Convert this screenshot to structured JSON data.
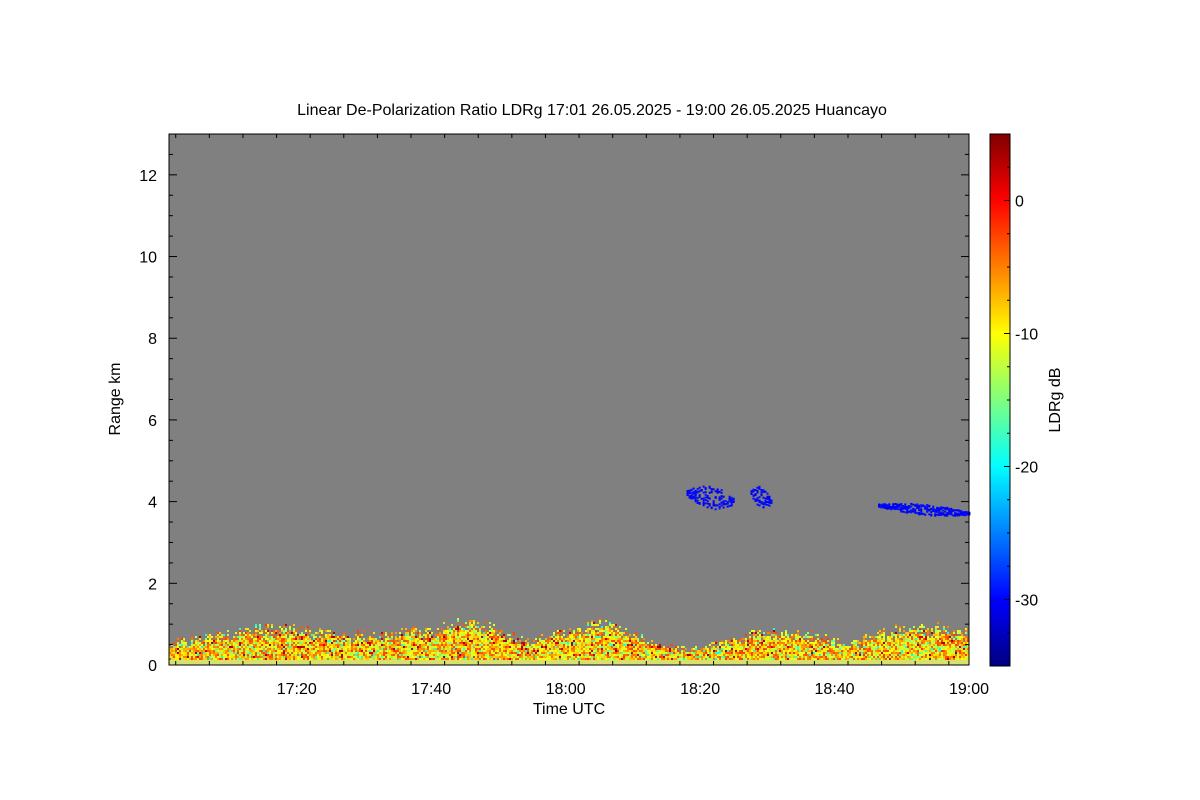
{
  "chart_data": {
    "type": "heatmap",
    "title": "Linear De-Polarization Ratio LDRg   17:01 26.05.2025 - 19:00 26.05.2025 Huancayo",
    "xlabel": "Time UTC",
    "ylabel": "Range km",
    "colorbar_label": "LDRg dB",
    "xlim_minutes": [
      1021,
      1140
    ],
    "ylim": [
      0,
      13
    ],
    "clim": [
      -35,
      5
    ],
    "x_ticks": [
      {
        "minutes": 1040,
        "label": "17:20"
      },
      {
        "minutes": 1060,
        "label": "17:40"
      },
      {
        "minutes": 1080,
        "label": "18:00"
      },
      {
        "minutes": 1100,
        "label": "18:20"
      },
      {
        "minutes": 1120,
        "label": "18:40"
      },
      {
        "minutes": 1140,
        "label": "19:00"
      }
    ],
    "y_ticks": [
      {
        "value": 0,
        "label": "0"
      },
      {
        "value": 2,
        "label": "2"
      },
      {
        "value": 4,
        "label": "4"
      },
      {
        "value": 6,
        "label": "6"
      },
      {
        "value": 8,
        "label": "8"
      },
      {
        "value": 10,
        "label": "10"
      },
      {
        "value": 12,
        "label": "12"
      }
    ],
    "colorbar_ticks": [
      {
        "value": 0,
        "label": "0"
      },
      {
        "value": -10,
        "label": "-10"
      },
      {
        "value": -20,
        "label": "-20"
      },
      {
        "value": -30,
        "label": "-30"
      }
    ],
    "background_color": "#808080",
    "colormap": [
      "#00007f",
      "#0000ff",
      "#007fff",
      "#00ffff",
      "#7fff7f",
      "#ffff00",
      "#ff7f00",
      "#ff0000",
      "#7f0000"
    ],
    "boundary_layer": {
      "description_free": true,
      "time_start_min": 1021,
      "time_end_min": 1140,
      "top_height_km": [
        [
          1021,
          0.55
        ],
        [
          1030,
          0.75
        ],
        [
          1036,
          0.9
        ],
        [
          1040,
          0.85
        ],
        [
          1046,
          0.75
        ],
        [
          1053,
          0.7
        ],
        [
          1058,
          0.85
        ],
        [
          1064,
          1.0
        ],
        [
          1069,
          0.9
        ],
        [
          1074,
          0.6
        ],
        [
          1080,
          0.8
        ],
        [
          1085,
          1.05
        ],
        [
          1089,
          0.85
        ],
        [
          1094,
          0.45
        ],
        [
          1100,
          0.4
        ],
        [
          1106,
          0.7
        ],
        [
          1112,
          0.85
        ],
        [
          1117,
          0.7
        ],
        [
          1122,
          0.5
        ],
        [
          1128,
          0.85
        ],
        [
          1134,
          0.9
        ],
        [
          1140,
          0.8
        ]
      ],
      "value_range_db": [
        -14,
        -2
      ]
    },
    "clouds": [
      {
        "t_start": 1098.0,
        "t_end": 1105.0,
        "h_center": 4.1,
        "h_half": 0.22,
        "value_db": -31
      },
      {
        "t_start": 1107.5,
        "t_end": 1110.5,
        "h_center": 4.1,
        "h_half": 0.2,
        "value_db": -31
      },
      {
        "t_start": 1126.5,
        "t_end": 1140.0,
        "h_center": 3.8,
        "h_half": 0.1,
        "value_db": -31
      }
    ]
  }
}
